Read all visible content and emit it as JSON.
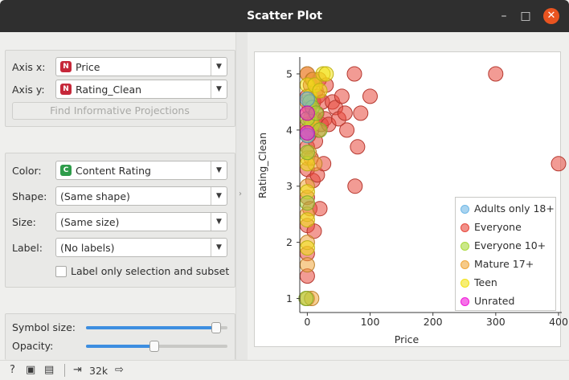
{
  "window": {
    "title": "Scatter Plot"
  },
  "axes_box": {
    "axis_x_label": "Axis x:",
    "axis_x_value": "Price",
    "axis_x_badge": "N",
    "axis_y_label": "Axis y:",
    "axis_y_value": "Rating_Clean",
    "axis_y_badge": "N",
    "find_projections": "Find Informative Projections"
  },
  "attributes_box": {
    "color_label": "Color:",
    "color_value": "Content Rating",
    "color_badge": "C",
    "shape_label": "Shape:",
    "shape_value": "(Same shape)",
    "size_label": "Size:",
    "size_value": "(Same size)",
    "label_label": "Label:",
    "label_value": "(No labels)",
    "label_only_selection": "Label only selection and subset"
  },
  "sliders_box": {
    "symbol_size_label": "Symbol size:",
    "symbol_size_level": 0.95,
    "opacity_label": "Opacity:",
    "opacity_level": 0.48
  },
  "statusbar": {
    "count": "32k"
  },
  "colors": {
    "numeric_badge": "#c6283a",
    "categorical_badge": "#2e9c4a",
    "slider_fill": "#3d8ee0",
    "accent_close": "#e95420"
  },
  "chart_data": {
    "type": "scatter",
    "xlabel": "Price",
    "ylabel": "Rating_Clean",
    "x_ticks": [
      "0",
      "100",
      "200",
      "300",
      "400"
    ],
    "y_ticks": [
      "1",
      "2",
      "3",
      "4",
      "5"
    ],
    "xlim": [
      -12,
      400
    ],
    "ylim": [
      0.75,
      5.3
    ],
    "legend_placement": "bottom-right",
    "legend": [
      {
        "name": "Adults only 18+",
        "color": "#6fb7e6"
      },
      {
        "name": "Everyone",
        "color": "#e8483c"
      },
      {
        "name": "Everyone 10+",
        "color": "#a9d93a"
      },
      {
        "name": "Mature 17+",
        "color": "#f0a63a"
      },
      {
        "name": "Teen",
        "color": "#f2e218"
      },
      {
        "name": "Unrated",
        "color": "#f018d8"
      }
    ],
    "series": [
      {
        "name": "Everyone",
        "points": [
          [
            0,
            1.4
          ],
          [
            0,
            1.8
          ],
          [
            0,
            2.3
          ],
          [
            0,
            2.8
          ],
          [
            0,
            3.3
          ],
          [
            0,
            3.7
          ],
          [
            0,
            4.1
          ],
          [
            0,
            4.6
          ],
          [
            0,
            5.0
          ],
          [
            2,
            3.9
          ],
          [
            3,
            4.4
          ],
          [
            4,
            2.6
          ],
          [
            5,
            4.8
          ],
          [
            6,
            3.5
          ],
          [
            7,
            4.0
          ],
          [
            8,
            4.9
          ],
          [
            9,
            3.1
          ],
          [
            10,
            4.5
          ],
          [
            11,
            2.2
          ],
          [
            12,
            4.2
          ],
          [
            13,
            3.8
          ],
          [
            14,
            4.7
          ],
          [
            15,
            4.3
          ],
          [
            16,
            3.2
          ],
          [
            17,
            4.6
          ],
          [
            18,
            4.0
          ],
          [
            19,
            4.9
          ],
          [
            20,
            2.6
          ],
          [
            22,
            4.1
          ],
          [
            24,
            4.5
          ],
          [
            26,
            3.4
          ],
          [
            28,
            4.2
          ],
          [
            30,
            4.8
          ],
          [
            34,
            4.1
          ],
          [
            40,
            4.5
          ],
          [
            45,
            4.4
          ],
          [
            50,
            4.2
          ],
          [
            55,
            4.6
          ],
          [
            60,
            4.3
          ],
          [
            63,
            4.0
          ],
          [
            75,
            5.0
          ],
          [
            76,
            3.0
          ],
          [
            80,
            3.7
          ],
          [
            85,
            4.3
          ],
          [
            100,
            4.6
          ],
          [
            300,
            5.0
          ],
          [
            400,
            3.4
          ]
        ]
      },
      {
        "name": "Mature 17+",
        "points": [
          [
            0,
            1.0
          ],
          [
            0,
            1.6
          ],
          [
            0,
            2.0
          ],
          [
            0,
            2.5
          ],
          [
            0,
            3.0
          ],
          [
            0,
            3.5
          ],
          [
            0,
            4.0
          ],
          [
            0,
            4.5
          ],
          [
            0,
            5.0
          ],
          [
            3,
            3.6
          ],
          [
            5,
            4.2
          ],
          [
            7,
            1.0
          ],
          [
            9,
            4.9
          ],
          [
            12,
            3.4
          ]
        ]
      },
      {
        "name": "Teen",
        "points": [
          [
            0,
            1.9
          ],
          [
            0,
            2.4
          ],
          [
            0,
            2.9
          ],
          [
            0,
            3.4
          ],
          [
            0,
            3.9
          ],
          [
            0,
            4.3
          ],
          [
            0,
            4.8
          ],
          [
            4,
            4.6
          ],
          [
            8,
            4.1
          ],
          [
            12,
            4.8
          ],
          [
            20,
            4.7
          ],
          [
            25,
            5.0
          ],
          [
            30,
            5.0
          ]
        ]
      },
      {
        "name": "Everyone 10+",
        "points": [
          [
            -2,
            1.0
          ],
          [
            0,
            2.7
          ],
          [
            0,
            3.6
          ],
          [
            0,
            4.2
          ],
          [
            4,
            4.5
          ],
          [
            8,
            4.4
          ],
          [
            14,
            4.3
          ],
          [
            20,
            4.0
          ]
        ]
      },
      {
        "name": "Adults only 18+",
        "points": [
          [
            0,
            4.55
          ],
          [
            0,
            3.9
          ]
        ]
      },
      {
        "name": "Unrated",
        "points": [
          [
            0,
            4.3
          ],
          [
            0,
            3.95
          ]
        ]
      }
    ]
  }
}
